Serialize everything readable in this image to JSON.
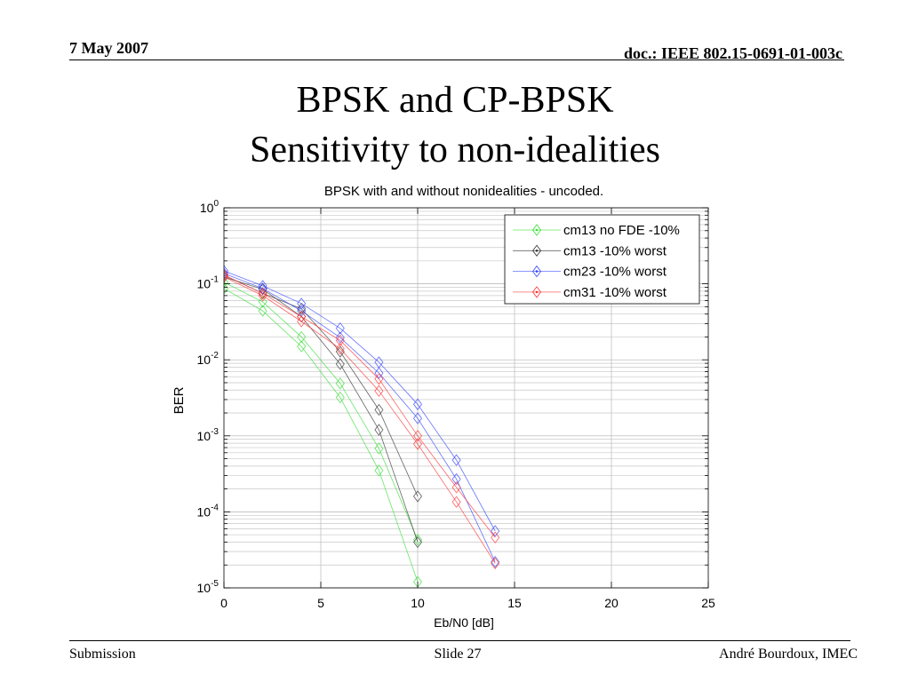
{
  "slide": {
    "date": "7 May 2007",
    "doc_id": "doc.: IEEE 802.15-0691-01-003c",
    "title_line1": "BPSK and CP-BPSK",
    "title_line2": "Sensitivity to non-idealities",
    "footer_left": "Submission",
    "footer_center": "Slide 27",
    "footer_right": "André Bourdoux, IMEC"
  },
  "chart_data": {
    "type": "line",
    "title": "BPSK with and without nonidealities - uncoded.",
    "xlabel": "Eb/N0 [dB]",
    "ylabel": "BER",
    "xlim": [
      0,
      25
    ],
    "ylim": [
      1e-05,
      1
    ],
    "yscale": "log",
    "grid": true,
    "legend_position": "top-right",
    "xticks": [
      0,
      5,
      10,
      15,
      20,
      25
    ],
    "xtick_labels": [
      "0",
      "5",
      "10",
      "15",
      "20",
      "25"
    ],
    "yticks": [
      1,
      0.1,
      0.01,
      0.001,
      0.0001,
      1e-05
    ],
    "ytick_labels": [
      {
        "base": "10",
        "exp": "0"
      },
      {
        "base": "10",
        "exp": "-1"
      },
      {
        "base": "10",
        "exp": "-2"
      },
      {
        "base": "10",
        "exp": "-3"
      },
      {
        "base": "10",
        "exp": "-4"
      },
      {
        "base": "10",
        "exp": "-5"
      }
    ],
    "series": [
      {
        "name": "cm13 no FDE -10%",
        "color": "#33dd33",
        "marker": "diamond",
        "curves": [
          {
            "x": [
              0,
              2,
              4,
              6,
              8,
              10
            ],
            "y": [
              0.087,
              0.044,
              0.015,
              0.0032,
              0.00035,
              1.2e-05
            ]
          },
          {
            "x": [
              0,
              2,
              4,
              6,
              8,
              10
            ],
            "y": [
              0.105,
              0.058,
              0.02,
              0.0049,
              0.00068,
              4.3e-05
            ]
          }
        ]
      },
      {
        "name": "cm13 -10% worst",
        "color": "#333333",
        "marker": "diamond",
        "curves": [
          {
            "x": [
              0,
              2,
              4,
              6,
              8,
              10
            ],
            "y": [
              0.13,
              0.075,
              0.047,
              0.0128,
              0.0022,
              0.00016
            ]
          },
          {
            "x": [
              0,
              2,
              4,
              6,
              8,
              10
            ],
            "y": [
              0.123,
              0.085,
              0.037,
              0.0088,
              0.0012,
              4e-05
            ]
          }
        ]
      },
      {
        "name": "cm23 -10% worst",
        "color": "#3344ff",
        "marker": "diamond",
        "curves": [
          {
            "x": [
              0,
              2,
              4,
              6,
              8,
              10,
              12,
              14
            ],
            "y": [
              0.148,
              0.094,
              0.055,
              0.026,
              0.0093,
              0.0026,
              0.00048,
              5.6e-05
            ]
          },
          {
            "x": [
              0,
              2,
              4,
              6,
              8,
              10,
              12,
              14
            ],
            "y": [
              0.137,
              0.087,
              0.044,
              0.0196,
              0.0067,
              0.0017,
              0.00027,
              2.2e-05
            ]
          }
        ]
      },
      {
        "name": "cm31 -10% worst",
        "color": "#ff3333",
        "marker": "diamond",
        "curves": [
          {
            "x": [
              0,
              2,
              4,
              6,
              8,
              10,
              12,
              14
            ],
            "y": [
              0.13,
              0.075,
              0.037,
              0.018,
              0.0056,
              0.001,
              0.00021,
              4.6e-05
            ]
          },
          {
            "x": [
              0,
              2,
              4,
              6,
              8,
              10,
              12,
              14
            ],
            "y": [
              0.123,
              0.07,
              0.032,
              0.014,
              0.0039,
              0.00078,
              0.000135,
              2.1e-05
            ]
          }
        ]
      }
    ]
  }
}
